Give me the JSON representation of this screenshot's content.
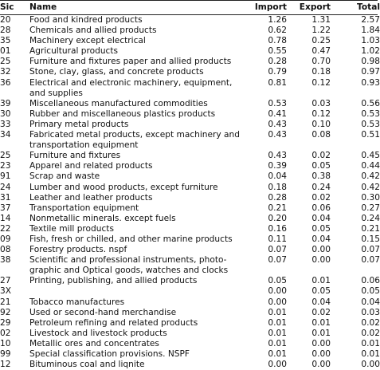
{
  "table": {
    "header": [
      "Sic",
      "Name",
      "Import",
      "Export",
      "Total"
    ],
    "rows": [
      [
        "20",
        [
          "Food and kindred products"
        ],
        "1.26",
        "1.31",
        "2.57"
      ],
      [
        "28",
        [
          "Chemicals and allied products"
        ],
        "0.62",
        "1.22",
        "1.84"
      ],
      [
        "35",
        [
          "Machinery except electrical"
        ],
        "0.78",
        "0.25",
        "1.03"
      ],
      [
        "01",
        [
          "Agricultural products"
        ],
        "0.55",
        "0.47",
        "1.02"
      ],
      [
        "25",
        [
          "Furniture and fixtures paper and allied products"
        ],
        "0.28",
        "0.70",
        "0.98"
      ],
      [
        "32",
        [
          "Stone, clay, glass, and concrete products"
        ],
        "0.79",
        "0.18",
        "0.97"
      ],
      [
        "36",
        [
          "Electrical and electronic machinery, equipment,",
          "and supplies"
        ],
        "0.81",
        "0.12",
        "0.93"
      ],
      [
        "39",
        [
          "Miscellaneous manufactured commodities"
        ],
        "0.53",
        "0.03",
        "0.56"
      ],
      [
        "30",
        [
          "Rubber and miscellaneous plastics products"
        ],
        "0.41",
        "0.12",
        "0.53"
      ],
      [
        "33",
        [
          "Primary metal products"
        ],
        "0.43",
        "0.10",
        "0.53"
      ],
      [
        "34",
        [
          "Fabricated metal products, except machinery and",
          "transportation equipment"
        ],
        "0.43",
        "0.08",
        "0.51"
      ],
      [
        "25",
        [
          "Furniture and fixtures"
        ],
        "0.43",
        "0.02",
        "0.45"
      ],
      [
        "23",
        [
          "Apparel and related products"
        ],
        "0.39",
        "0.05",
        "0.44"
      ],
      [
        "91",
        [
          "Scrap and waste"
        ],
        "0.04",
        "0.38",
        "0.42"
      ],
      [
        "24",
        [
          "Lumber and wood products, except furniture"
        ],
        "0.18",
        "0.24",
        "0.42"
      ],
      [
        "31",
        [
          "Leather and leather products"
        ],
        "0.28",
        "0.02",
        "0.30"
      ],
      [
        "37",
        [
          "Transportation equipment"
        ],
        "0.21",
        "0.06",
        "0.27"
      ],
      [
        "14",
        [
          "Nonmetallic minerals. except fuels"
        ],
        "0.20",
        "0.04",
        "0.24"
      ],
      [
        "22",
        [
          "Textile mill products"
        ],
        "0.16",
        "0.05",
        "0.21"
      ],
      [
        "09",
        [
          "Fish, fresh or chilled, and other marine products"
        ],
        "0.11",
        "0.04",
        "0.15"
      ],
      [
        "08",
        [
          "Forestry products. nspf"
        ],
        "0.07",
        "0.00",
        "0.07"
      ],
      [
        "38",
        [
          "Scientific and professional instruments, photo-",
          "graphic and Optical goods, watches and clocks"
        ],
        "0.07",
        "0.00",
        "0.07"
      ],
      [
        "27",
        [
          "Printing, publishing, and allied products"
        ],
        "0.05",
        "0.01",
        "0.06"
      ],
      [
        "3X",
        [],
        "0.00",
        "0.05",
        "0.05"
      ],
      [
        "21",
        [
          "Tobacco manufactures"
        ],
        "0.00",
        "0.04",
        "0.04"
      ],
      [
        "92",
        [
          "Used or second-hand merchandise"
        ],
        "0.01",
        "0.02",
        "0.03"
      ],
      [
        "29",
        [
          "Petroleum refining and related products"
        ],
        "0.01",
        "0.01",
        "0.02"
      ],
      [
        "02",
        [
          "Livestock and livestock products"
        ],
        "0.01",
        "0.01",
        "0.02"
      ],
      [
        "10",
        [
          "Metallic ores and concentrates"
        ],
        "0.01",
        "0.00",
        "0.01"
      ],
      [
        "99",
        [
          "Special classification provisions. NSPF"
        ],
        "0.01",
        "0.00",
        "0.01"
      ],
      [
        "12",
        [
          "Bituminous coal and liqnite"
        ],
        "0.00",
        "0.00",
        "0.00"
      ]
    ]
  }
}
